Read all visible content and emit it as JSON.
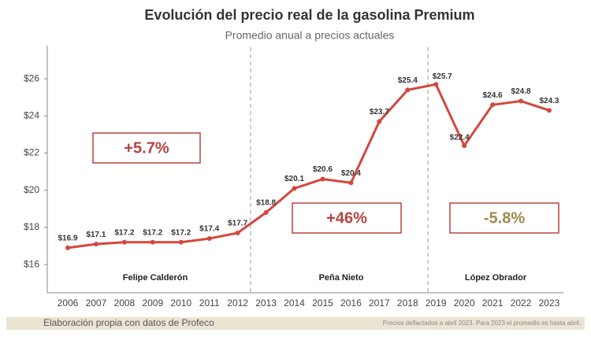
{
  "chart_data": {
    "type": "line",
    "title": "Evolución del precio real de la gasolina Premium",
    "subtitle": "Promedio anual a precios actuales",
    "categories": [
      "2006",
      "2007",
      "2008",
      "2009",
      "2010",
      "2011",
      "2012",
      "2013",
      "2014",
      "2015",
      "2016",
      "2017",
      "2018",
      "2019",
      "2020",
      "2021",
      "2022",
      "2023"
    ],
    "series": [
      {
        "name": "Gasolina Premium",
        "color": "#d4473f",
        "values": [
          16.9,
          17.1,
          17.2,
          17.2,
          17.2,
          17.4,
          17.7,
          18.8,
          20.1,
          20.6,
          20.4,
          23.7,
          25.4,
          25.7,
          22.4,
          24.6,
          24.8,
          24.3
        ],
        "value_labels": [
          "$16.9",
          "$17.1",
          "$17.2",
          "$17.2",
          "$17.2",
          "$17.4",
          "$17.7",
          "$18.8",
          "$20.1",
          "$20.6",
          "$20.4",
          "$23.7",
          "$25.4",
          "$25.7",
          "$22.4",
          "$24.6",
          "$24.8",
          "$24.3"
        ]
      }
    ],
    "ylim": [
      14.5,
      27.7
    ],
    "yticks": [
      {
        "value": 16,
        "label": "$16"
      },
      {
        "value": 18,
        "label": "$18"
      },
      {
        "value": 20,
        "label": "$20"
      },
      {
        "value": 22,
        "label": "$22"
      },
      {
        "value": 24,
        "label": "$24"
      },
      {
        "value": 26,
        "label": "$26"
      }
    ],
    "periods": [
      "Felipe Calderón",
      "Peña Nieto",
      "López Obrador"
    ],
    "annotations": [
      {
        "text": "+5.7%",
        "color": "#b8433d"
      },
      {
        "text": "+46%",
        "color": "#b8433d"
      },
      {
        "text": "-5.8%",
        "color": "#a08a4a"
      }
    ],
    "source": "Elaboración propia con datos de Profeco",
    "note": "Precios deflactados a abril 2023. Para 2023 el promedio es hasta abril."
  }
}
